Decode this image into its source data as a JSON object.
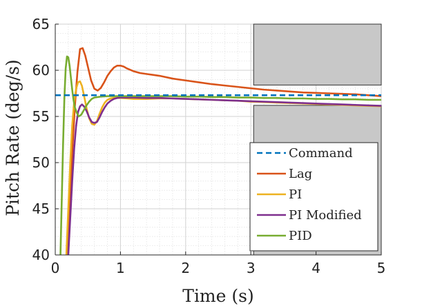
{
  "chart_data": {
    "type": "line",
    "title": "",
    "xlabel": "Time (s)",
    "ylabel": "Pitch Rate (deg/s)",
    "xlim": [
      0,
      5
    ],
    "ylim": [
      40,
      65
    ],
    "x_ticks": [
      "0",
      "1",
      "2",
      "3",
      "4",
      "5"
    ],
    "y_ticks": [
      "40",
      "45",
      "50",
      "55",
      "60",
      "65"
    ],
    "x_tick_values": [
      0,
      1,
      2,
      3,
      4,
      5
    ],
    "y_tick_values": [
      40,
      45,
      50,
      55,
      60,
      65
    ],
    "grid": true,
    "minor_grid": true,
    "legend_position": "bottom-right",
    "shaded_regions": [
      {
        "x": [
          3,
          5
        ],
        "y": [
          58.4,
          65
        ],
        "color": "#c8c8c8"
      },
      {
        "x": [
          3,
          5
        ],
        "y": [
          40,
          56.2
        ],
        "color": "#c8c8c8"
      }
    ],
    "series": [
      {
        "name": "Command",
        "color": "#0072BD",
        "dash": true,
        "x": [
          0,
          5
        ],
        "y": [
          57.3,
          57.3
        ]
      },
      {
        "name": "Lag",
        "color": "#D95319",
        "dash": false,
        "x": [
          0.18,
          0.22,
          0.26,
          0.3,
          0.34,
          0.38,
          0.42,
          0.46,
          0.5,
          0.55,
          0.6,
          0.65,
          0.7,
          0.75,
          0.8,
          0.85,
          0.9,
          0.95,
          1.0,
          1.05,
          1.1,
          1.2,
          1.3,
          1.4,
          1.5,
          1.6,
          1.8,
          2.0,
          2.2,
          2.4,
          2.6,
          2.8,
          3.0,
          3.2,
          3.4,
          3.6,
          3.8,
          4.0,
          4.2,
          4.4,
          4.6,
          4.8,
          5.0
        ],
        "y": [
          40.0,
          45.5,
          51.0,
          56.0,
          59.8,
          62.3,
          62.4,
          61.6,
          60.4,
          58.9,
          58.0,
          57.8,
          58.1,
          58.7,
          59.4,
          59.9,
          60.3,
          60.5,
          60.5,
          60.4,
          60.2,
          59.9,
          59.7,
          59.6,
          59.5,
          59.4,
          59.1,
          58.9,
          58.7,
          58.5,
          58.35,
          58.2,
          58.05,
          57.9,
          57.8,
          57.7,
          57.6,
          57.55,
          57.5,
          57.45,
          57.4,
          57.3,
          57.2
        ]
      },
      {
        "name": "PI",
        "color": "#EDB120",
        "dash": false,
        "x": [
          0.17,
          0.2,
          0.23,
          0.26,
          0.29,
          0.32,
          0.35,
          0.38,
          0.41,
          0.44,
          0.48,
          0.52,
          0.56,
          0.6,
          0.64,
          0.68,
          0.72,
          0.76,
          0.8,
          0.85,
          0.9,
          0.95,
          1.0,
          1.1,
          1.2,
          1.4,
          1.6,
          1.8,
          2.0,
          2.2,
          2.4,
          2.6,
          2.8,
          3.0,
          3.2,
          3.4,
          3.6,
          3.8,
          4.0,
          4.2,
          4.4,
          4.6,
          4.8,
          5.0
        ],
        "y": [
          40.0,
          45.0,
          50.0,
          54.0,
          56.6,
          58.0,
          58.7,
          58.8,
          58.3,
          57.3,
          55.9,
          54.8,
          54.2,
          54.1,
          54.5,
          55.3,
          56.0,
          56.5,
          56.8,
          56.95,
          57.0,
          57.0,
          57.0,
          56.95,
          56.9,
          56.9,
          56.95,
          56.95,
          56.9,
          56.85,
          56.8,
          56.75,
          56.7,
          56.6,
          56.55,
          56.5,
          56.45,
          56.4,
          56.35,
          56.3,
          56.25,
          56.2,
          56.15,
          56.1
        ]
      },
      {
        "name": "PI Modified",
        "color": "#7E2F8E",
        "dash": false,
        "x": [
          0.2,
          0.23,
          0.26,
          0.29,
          0.32,
          0.35,
          0.38,
          0.41,
          0.44,
          0.48,
          0.52,
          0.56,
          0.6,
          0.64,
          0.68,
          0.72,
          0.76,
          0.8,
          0.85,
          0.9,
          0.95,
          1.0,
          1.05,
          1.1,
          1.2,
          1.4,
          1.6,
          1.8,
          2.0,
          2.2,
          2.4,
          2.6,
          2.8,
          3.0,
          3.2,
          3.4,
          3.6,
          3.8,
          4.0,
          4.2,
          4.4,
          4.6,
          4.8,
          5.0
        ],
        "y": [
          40.0,
          44.0,
          48.0,
          51.5,
          54.0,
          55.5,
          56.1,
          56.3,
          56.1,
          55.6,
          54.9,
          54.4,
          54.3,
          54.4,
          54.9,
          55.5,
          56.0,
          56.4,
          56.7,
          56.9,
          57.0,
          57.05,
          57.05,
          57.05,
          57.05,
          57.0,
          57.0,
          56.95,
          56.9,
          56.85,
          56.8,
          56.75,
          56.7,
          56.65,
          56.6,
          56.55,
          56.5,
          56.45,
          56.4,
          56.35,
          56.3,
          56.25,
          56.2,
          56.15
        ]
      },
      {
        "name": "PID",
        "color": "#77AC30",
        "dash": false,
        "x": [
          0.08,
          0.1,
          0.12,
          0.14,
          0.16,
          0.18,
          0.2,
          0.22,
          0.24,
          0.26,
          0.28,
          0.3,
          0.33,
          0.36,
          0.4,
          0.44,
          0.48,
          0.52,
          0.56,
          0.6,
          0.65,
          0.7,
          0.8,
          0.9,
          1.0,
          1.2,
          1.4,
          1.6,
          1.8,
          2.0,
          2.2,
          2.4,
          2.6,
          2.8,
          3.0,
          3.2,
          3.4,
          3.6,
          3.8,
          4.0,
          4.2,
          4.4,
          4.6,
          4.8,
          5.0
        ],
        "y": [
          40.0,
          46.0,
          52.0,
          57.0,
          60.2,
          61.5,
          61.4,
          60.5,
          59.2,
          57.9,
          56.8,
          56.0,
          55.4,
          55.0,
          55.2,
          55.7,
          56.2,
          56.6,
          56.9,
          57.05,
          57.1,
          57.15,
          57.2,
          57.2,
          57.2,
          57.2,
          57.2,
          57.2,
          57.2,
          57.15,
          57.15,
          57.1,
          57.1,
          57.05,
          57.05,
          57.0,
          57.0,
          56.95,
          56.95,
          56.9,
          56.9,
          56.85,
          56.85,
          56.8,
          56.8
        ]
      }
    ],
    "legend": [
      "Command",
      "Lag",
      "PI",
      "PI Modified",
      "PID"
    ]
  }
}
